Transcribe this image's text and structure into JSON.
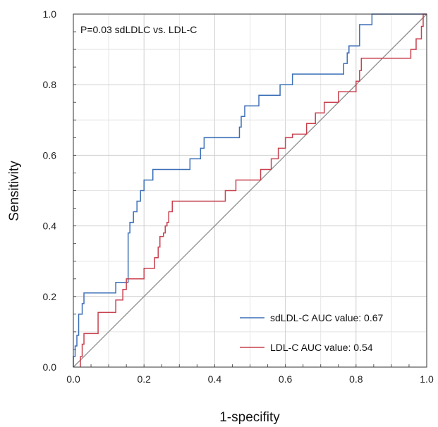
{
  "chart_data": {
    "type": "line",
    "xlabel": "1-specifity",
    "ylabel": "Sensitivity",
    "xlim": [
      0,
      1
    ],
    "ylim": [
      0,
      1
    ],
    "x_ticks": [
      "0.0",
      "0.2",
      "0.4",
      "0.6",
      "0.8",
      "1.0"
    ],
    "y_ticks": [
      "0.0",
      "0.2",
      "0.4",
      "0.6",
      "0.8",
      "1.0"
    ],
    "grid": true,
    "legend_position": "bottom-right",
    "annotation": "P=0.03  sdLDLC vs. LDL-C",
    "reference_line": {
      "x": [
        0,
        1
      ],
      "y": [
        0,
        1
      ],
      "color": "#8a8a8a"
    },
    "series": [
      {
        "name": "sdLDL-C",
        "legend_label": "sdLDL-C  AUC value: 0.67",
        "color": "#3b6fb6",
        "x": [
          0.0,
          0.0,
          0.005,
          0.005,
          0.01,
          0.01,
          0.015,
          0.015,
          0.025,
          0.025,
          0.03,
          0.03,
          0.045,
          0.045,
          0.06,
          0.06,
          0.12,
          0.12,
          0.155,
          0.155,
          0.16,
          0.16,
          0.165,
          0.165,
          0.17,
          0.17,
          0.18,
          0.18,
          0.19,
          0.19,
          0.195,
          0.195,
          0.2,
          0.2,
          0.21,
          0.21,
          0.225,
          0.225,
          0.26,
          0.26,
          0.33,
          0.33,
          0.36,
          0.36,
          0.37,
          0.37,
          0.38,
          0.38,
          0.47,
          0.47,
          0.475,
          0.475,
          0.485,
          0.485,
          0.525,
          0.525,
          0.555,
          0.555,
          0.585,
          0.585,
          0.62,
          0.62,
          0.765,
          0.765,
          0.775,
          0.775,
          0.78,
          0.78,
          0.81,
          0.81,
          0.835,
          0.835,
          0.845,
          0.845,
          1.0
        ],
        "y": [
          0.0,
          0.03,
          0.03,
          0.06,
          0.06,
          0.09,
          0.09,
          0.15,
          0.15,
          0.18,
          0.18,
          0.21,
          0.21,
          0.21,
          0.21,
          0.21,
          0.21,
          0.24,
          0.24,
          0.38,
          0.38,
          0.41,
          0.41,
          0.41,
          0.41,
          0.44,
          0.44,
          0.47,
          0.47,
          0.5,
          0.5,
          0.5,
          0.5,
          0.53,
          0.53,
          0.53,
          0.53,
          0.56,
          0.56,
          0.56,
          0.56,
          0.59,
          0.59,
          0.62,
          0.62,
          0.65,
          0.65,
          0.65,
          0.65,
          0.68,
          0.68,
          0.71,
          0.71,
          0.74,
          0.74,
          0.77,
          0.77,
          0.77,
          0.77,
          0.8,
          0.8,
          0.83,
          0.83,
          0.86,
          0.86,
          0.89,
          0.89,
          0.91,
          0.91,
          0.97,
          0.97,
          0.97,
          0.97,
          1.0,
          1.0
        ]
      },
      {
        "name": "LDL-C",
        "legend_label": "LDL-C  AUC value: 0.54",
        "color": "#c8414f",
        "x": [
          0.02,
          0.02,
          0.025,
          0.025,
          0.03,
          0.03,
          0.07,
          0.07,
          0.12,
          0.12,
          0.14,
          0.14,
          0.15,
          0.15,
          0.2,
          0.2,
          0.23,
          0.23,
          0.24,
          0.24,
          0.245,
          0.245,
          0.255,
          0.255,
          0.26,
          0.26,
          0.265,
          0.265,
          0.27,
          0.27,
          0.28,
          0.28,
          0.43,
          0.43,
          0.46,
          0.46,
          0.53,
          0.53,
          0.56,
          0.56,
          0.58,
          0.58,
          0.6,
          0.6,
          0.62,
          0.62,
          0.66,
          0.66,
          0.685,
          0.685,
          0.71,
          0.71,
          0.74,
          0.74,
          0.75,
          0.75,
          0.8,
          0.8,
          0.81,
          0.81,
          0.815,
          0.815,
          0.83,
          0.83,
          0.875,
          0.875,
          0.955,
          0.955,
          0.965,
          0.965,
          0.97,
          0.97,
          0.975,
          0.975,
          0.985,
          0.985,
          0.99,
          0.99,
          1.0
        ],
        "y": [
          0.0,
          0.03,
          0.03,
          0.065,
          0.065,
          0.095,
          0.095,
          0.155,
          0.155,
          0.19,
          0.19,
          0.22,
          0.22,
          0.25,
          0.25,
          0.28,
          0.28,
          0.31,
          0.31,
          0.34,
          0.34,
          0.37,
          0.37,
          0.38,
          0.38,
          0.4,
          0.4,
          0.41,
          0.41,
          0.44,
          0.44,
          0.47,
          0.47,
          0.5,
          0.5,
          0.53,
          0.53,
          0.56,
          0.56,
          0.59,
          0.59,
          0.62,
          0.62,
          0.65,
          0.65,
          0.66,
          0.66,
          0.69,
          0.69,
          0.72,
          0.72,
          0.75,
          0.75,
          0.75,
          0.75,
          0.78,
          0.78,
          0.81,
          0.81,
          0.84,
          0.84,
          0.875,
          0.875,
          0.875,
          0.875,
          0.875,
          0.875,
          0.9,
          0.9,
          0.9,
          0.9,
          0.93,
          0.93,
          0.93,
          0.93,
          0.965,
          0.965,
          1.0,
          1.0
        ]
      }
    ]
  }
}
